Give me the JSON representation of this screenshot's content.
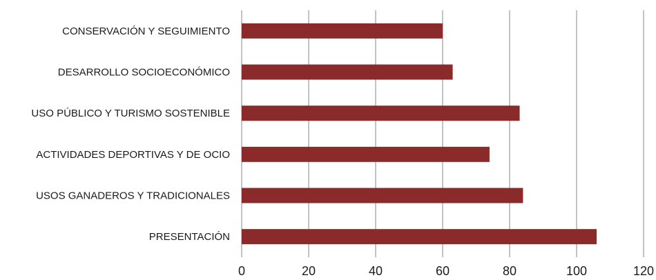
{
  "chart_data": {
    "type": "bar",
    "orientation": "horizontal",
    "categories": [
      "CONSERVACIÓN Y SEGUIMIENTO",
      "DESARROLLO SOCIOECONÓMICO",
      "USO PÚBLICO Y TURISMO SOSTENIBLE",
      "ACTIVIDADES DEPORTIVAS Y DE OCIO",
      "USOS GANADEROS Y TRADICIONALES",
      "PRESENTACIÓN"
    ],
    "values": [
      60,
      63,
      83,
      74,
      84,
      106
    ],
    "xlim": [
      0,
      120
    ],
    "xticks": [
      "0",
      "20",
      "40",
      "60",
      "80",
      "100",
      "120"
    ],
    "grid": "vertical",
    "legend": "none",
    "colors": {
      "bar": "#8b2a2a"
    }
  }
}
